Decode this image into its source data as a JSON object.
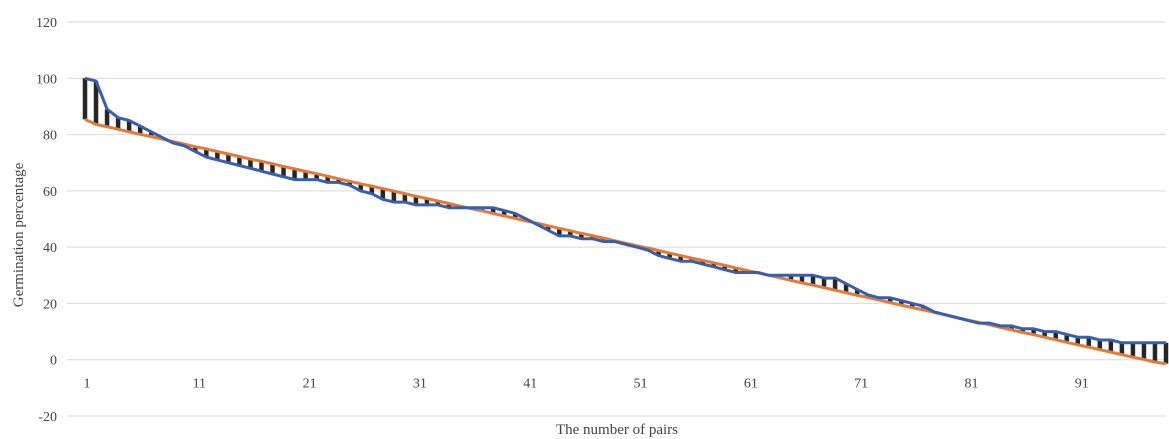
{
  "chart_data": {
    "type": "line",
    "title": "",
    "xlabel": "The number of pairs",
    "ylabel": "Germination percentage",
    "ylim": [
      -20,
      120
    ],
    "xlim": [
      1,
      99
    ],
    "yticks": [
      -20,
      0,
      20,
      40,
      60,
      80,
      100,
      120
    ],
    "xticks": [
      1,
      11,
      21,
      31,
      41,
      51,
      61,
      71,
      81,
      91
    ],
    "grid": true,
    "legend": "none",
    "deviation_bars": "vertical bars between the two series at each pair",
    "x": [
      1,
      2,
      3,
      4,
      5,
      6,
      7,
      8,
      9,
      10,
      11,
      12,
      13,
      14,
      15,
      16,
      17,
      18,
      19,
      20,
      21,
      22,
      23,
      24,
      25,
      26,
      27,
      28,
      29,
      30,
      31,
      32,
      33,
      34,
      35,
      36,
      37,
      38,
      39,
      40,
      41,
      42,
      43,
      44,
      45,
      46,
      47,
      48,
      49,
      50,
      51,
      52,
      53,
      54,
      55,
      56,
      57,
      58,
      59,
      60,
      61,
      62,
      63,
      64,
      65,
      66,
      67,
      68,
      69,
      70,
      71,
      72,
      73,
      74,
      75,
      76,
      77,
      78,
      79,
      80,
      81,
      82,
      83,
      84,
      85,
      86,
      87,
      88,
      89,
      90,
      91,
      92,
      93,
      94,
      95,
      96,
      97,
      98,
      99
    ],
    "series": [
      {
        "color": "#3b5ea8",
        "values": [
          100,
          99,
          89,
          86,
          85,
          83,
          81,
          79,
          77,
          76,
          74,
          72,
          71,
          70,
          69,
          68,
          67,
          66,
          65,
          64,
          64,
          64,
          63,
          63,
          62,
          60,
          59,
          57,
          56,
          56,
          55,
          55,
          55,
          54,
          54,
          54,
          54,
          54,
          53,
          52,
          50,
          48,
          46,
          44,
          44,
          43,
          43,
          42,
          42,
          41,
          40,
          39,
          37,
          36,
          35,
          35,
          34,
          33,
          32,
          31,
          31,
          31,
          30,
          30,
          30,
          30,
          30,
          29,
          29,
          27,
          25,
          23,
          22,
          22,
          21,
          20,
          19,
          17,
          16,
          15,
          14,
          13,
          13,
          12,
          12,
          11,
          11,
          10,
          10,
          9,
          8,
          8,
          7,
          7,
          6,
          6,
          6,
          6,
          6
        ]
      },
      {
        "color": "#e07b39",
        "values": [
          85.4,
          83.6,
          82.8,
          81.9,
          81.0,
          80.1,
          79.3,
          78.4,
          77.5,
          76.6,
          75.7,
          74.9,
          74.0,
          73.1,
          72.2,
          71.3,
          70.5,
          69.6,
          68.7,
          67.8,
          66.9,
          66.1,
          65.2,
          64.3,
          63.4,
          62.5,
          61.7,
          60.8,
          59.9,
          59.0,
          58.1,
          57.3,
          56.4,
          55.5,
          54.6,
          53.7,
          52.9,
          52.0,
          51.1,
          50.2,
          49.3,
          48.5,
          47.6,
          46.7,
          45.8,
          44.9,
          44.1,
          43.2,
          42.3,
          41.4,
          40.5,
          39.7,
          38.8,
          37.9,
          37.0,
          36.1,
          35.3,
          34.4,
          33.5,
          32.6,
          31.7,
          30.9,
          30.0,
          29.1,
          28.2,
          27.3,
          26.5,
          25.6,
          24.7,
          23.8,
          22.9,
          22.1,
          21.2,
          20.3,
          19.4,
          18.5,
          17.7,
          16.8,
          15.9,
          15.0,
          14.1,
          13.3,
          12.4,
          11.5,
          10.6,
          9.7,
          8.9,
          8.0,
          7.1,
          6.2,
          5.3,
          4.5,
          3.6,
          2.7,
          1.8,
          0.9,
          0.1,
          -0.8,
          -1.4
        ]
      }
    ]
  }
}
